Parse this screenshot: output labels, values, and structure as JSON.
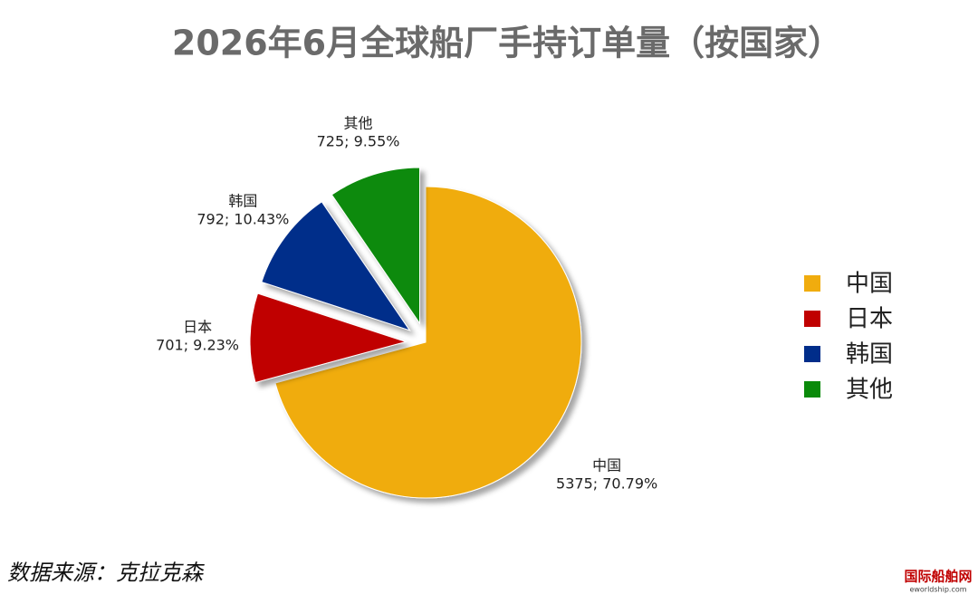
{
  "chart_data": {
    "type": "pie",
    "title": "2026年6月全球船厂手持订单量（按国家）",
    "categories": [
      "中国",
      "日本",
      "韩国",
      "其他"
    ],
    "values": [
      5375,
      701,
      792,
      725
    ],
    "value_labels": [
      "5375; 70.79%",
      "701; 9.23%",
      "792; 10.43%",
      "725; 9.55%"
    ],
    "colors": [
      "#f0ac0e",
      "#c00000",
      "#002d8a",
      "#0a8a0a"
    ],
    "legend": "right",
    "source": "数据来源：克拉克森"
  },
  "watermark": {
    "name": "国际船舶网",
    "url": "eworldship.com"
  }
}
